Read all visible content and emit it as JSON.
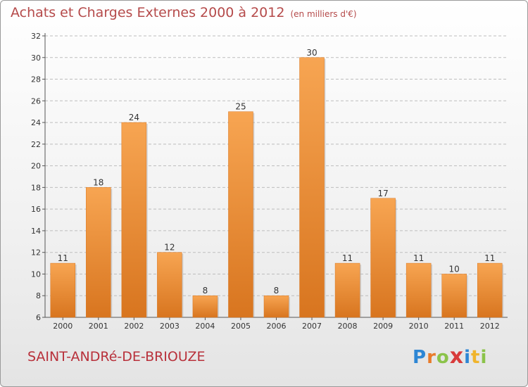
{
  "header": {
    "title": "Achats et Charges Externes 2000 à 2012",
    "unit": "(en milliers d'€)"
  },
  "footer": {
    "commune": "SAINT-ANDRé-DE-BRIOUZE",
    "logo": "Proxiti"
  },
  "colors": {
    "title": "#b54a4a",
    "commune": "#b8303a",
    "bar_light": "#f7a552",
    "bar_dark": "#d8751f",
    "grid": "#bdbdbd"
  },
  "chart_data": {
    "type": "bar",
    "title": "Achats et Charges Externes 2000 à 2012",
    "subtitle": "(en milliers d'€)",
    "categories": [
      "2000",
      "2001",
      "2002",
      "2003",
      "2004",
      "2005",
      "2006",
      "2007",
      "2008",
      "2009",
      "2010",
      "2011",
      "2012"
    ],
    "values": [
      11,
      18,
      24,
      12,
      8,
      25,
      8,
      30,
      11,
      17,
      11,
      10,
      11
    ],
    "ylim": [
      6,
      32
    ],
    "yticks": [
      6,
      8,
      10,
      12,
      14,
      16,
      18,
      20,
      22,
      24,
      26,
      28,
      30,
      32
    ],
    "grid": true,
    "data_labels": true
  }
}
